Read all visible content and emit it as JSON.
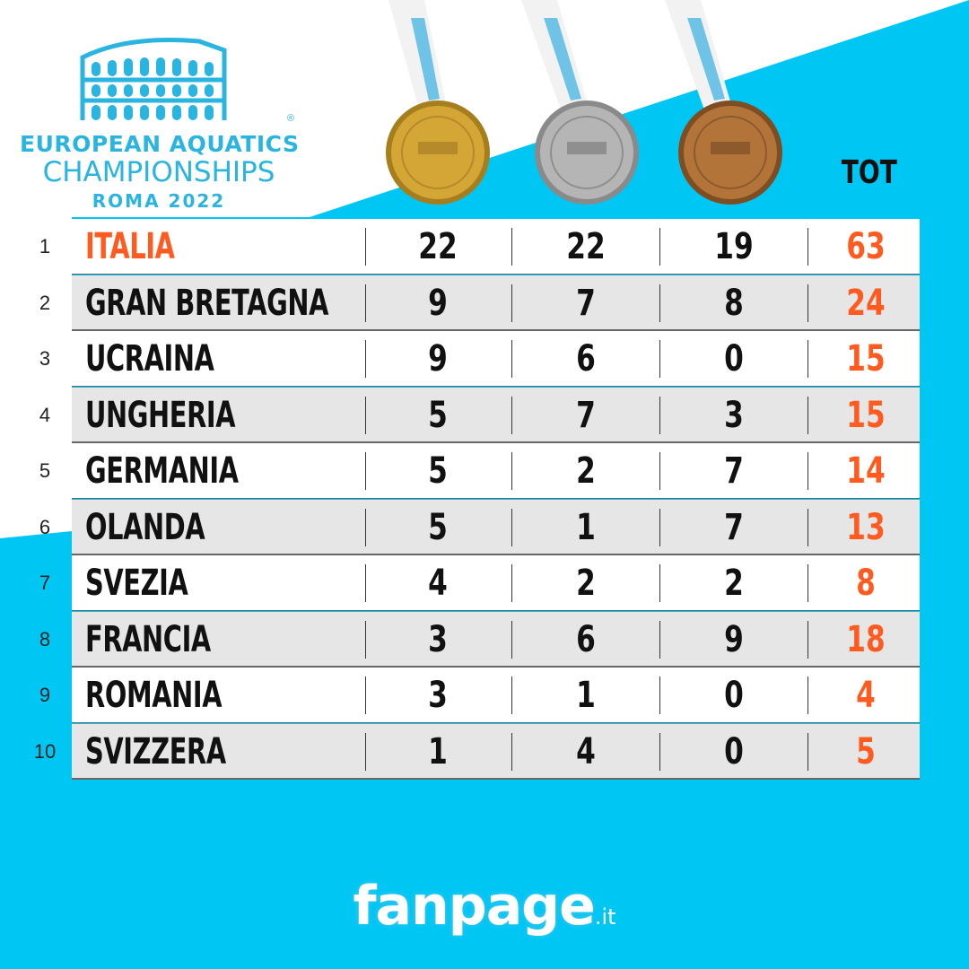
{
  "logo": {
    "line1": "EUROPEAN AQUATICS",
    "line2": "CHAMPIONSHIPS",
    "line3": "ROMA 2022",
    "registered": "®"
  },
  "medals": [
    {
      "name": "gold-medal",
      "color": "#d4a636"
    },
    {
      "name": "silver-medal",
      "color": "#b5b5b5"
    },
    {
      "name": "bronze-medal",
      "color": "#b3743a"
    }
  ],
  "table": {
    "total_header": "TOT",
    "rows": [
      {
        "rank": "1",
        "country": "ITALIA",
        "gold": "22",
        "silver": "22",
        "bronze": "19",
        "total": "63"
      },
      {
        "rank": "2",
        "country": "GRAN BRETAGNA",
        "gold": "9",
        "silver": "7",
        "bronze": "8",
        "total": "24"
      },
      {
        "rank": "3",
        "country": "UCRAINA",
        "gold": "9",
        "silver": "6",
        "bronze": "0",
        "total": "15"
      },
      {
        "rank": "4",
        "country": "UNGHERIA",
        "gold": "5",
        "silver": "7",
        "bronze": "3",
        "total": "15"
      },
      {
        "rank": "5",
        "country": "GERMANIA",
        "gold": "5",
        "silver": "2",
        "bronze": "7",
        "total": "14"
      },
      {
        "rank": "6",
        "country": "OLANDA",
        "gold": "5",
        "silver": "1",
        "bronze": "7",
        "total": "13"
      },
      {
        "rank": "7",
        "country": "SVEZIA",
        "gold": "4",
        "silver": "2",
        "bronze": "2",
        "total": "8"
      },
      {
        "rank": "8",
        "country": "FRANCIA",
        "gold": "3",
        "silver": "6",
        "bronze": "9",
        "total": "18"
      },
      {
        "rank": "9",
        "country": "ROMANIA",
        "gold": "3",
        "silver": "1",
        "bronze": "0",
        "total": "4"
      },
      {
        "rank": "10",
        "country": "SVIZZERA",
        "gold": "1",
        "silver": "4",
        "bronze": "0",
        "total": "5"
      }
    ]
  },
  "footer": {
    "brand": "fanpage",
    "suffix": ".it"
  },
  "colors": {
    "sky_blue": "#00c6f4",
    "logo_blue": "#2ab4e0",
    "accent_orange": "#ff5a1f"
  }
}
